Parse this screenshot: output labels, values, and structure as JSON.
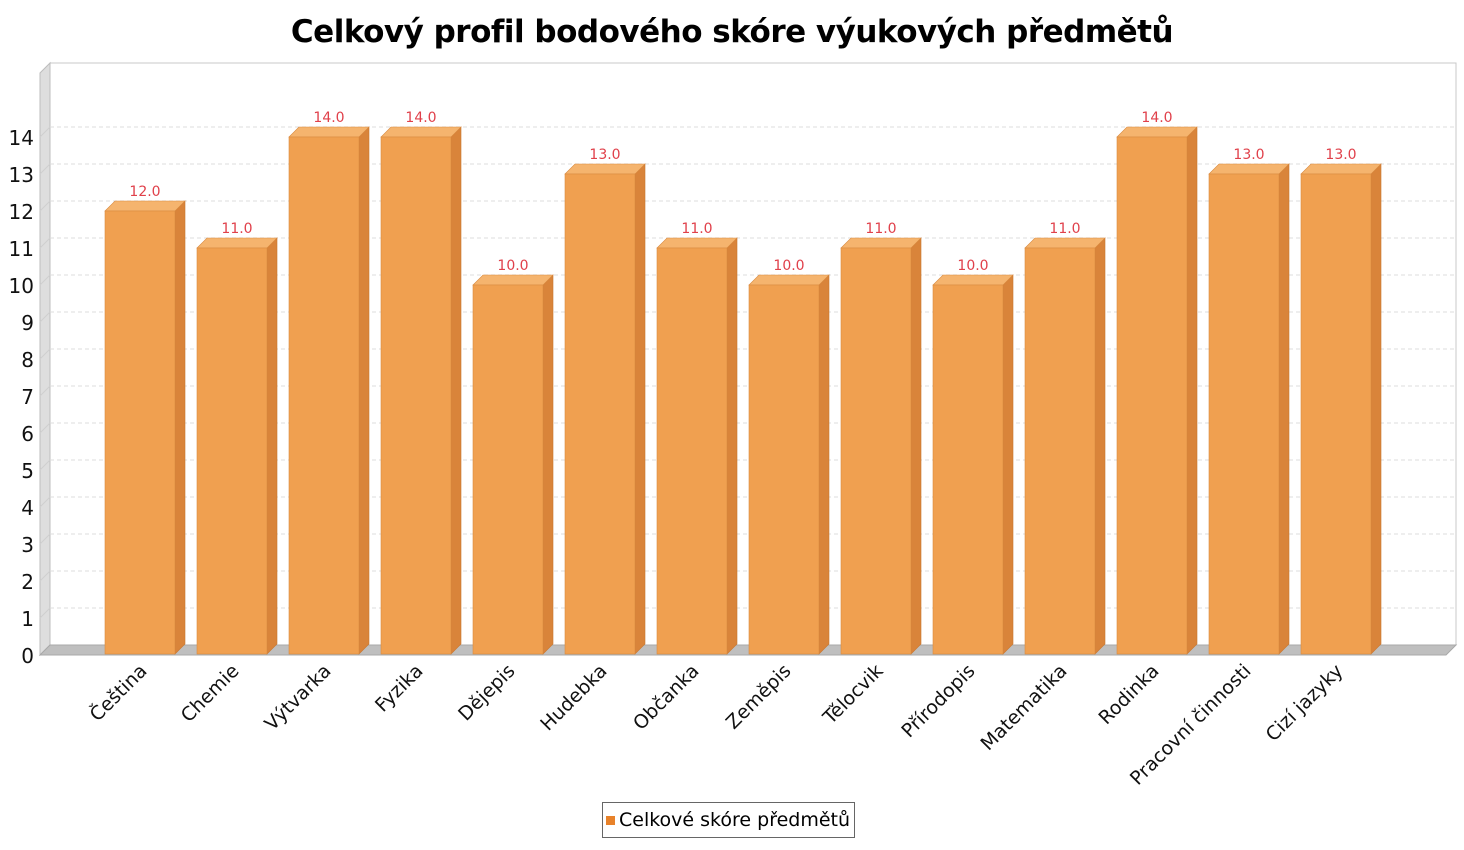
{
  "chart_data": {
    "type": "bar",
    "title": "Celkový profil bodového skóre výukových předmětů",
    "xlabel": "",
    "ylabel": "",
    "categories": [
      "Čeština",
      "Chemie",
      "Výtvarka",
      "Fyzika",
      "Dějepis",
      "Hudebka",
      "Občanka",
      "Zeměpis",
      "Tělocvik",
      "Přírodopis",
      "Matematika",
      "Rodinka",
      "Pracovní činnosti",
      "Cizí jazyky"
    ],
    "series": [
      {
        "name": "Celkové skóre předmětů",
        "values": [
          12.0,
          11.0,
          14.0,
          14.0,
          10.0,
          13.0,
          11.0,
          10.0,
          11.0,
          10.0,
          11.0,
          14.0,
          13.0,
          13.0
        ]
      }
    ],
    "value_labels": [
      "12.0",
      "11.0",
      "14.0",
      "14.0",
      "10.0",
      "13.0",
      "11.0",
      "10.0",
      "11.0",
      "10.0",
      "11.0",
      "14.0",
      "13.0",
      "13.0"
    ],
    "yticks": [
      0,
      1,
      2,
      3,
      4,
      5,
      6,
      7,
      8,
      9,
      10,
      11,
      12,
      13,
      14
    ],
    "ylim": [
      0,
      16
    ],
    "grid": true,
    "legend_position": "bottom",
    "colors": {
      "bar": "#f0a050",
      "bar_side": "#d9843a",
      "bar_top": "#f5b46e",
      "value_label": "#e0404a",
      "grid": "#dddddd"
    }
  }
}
